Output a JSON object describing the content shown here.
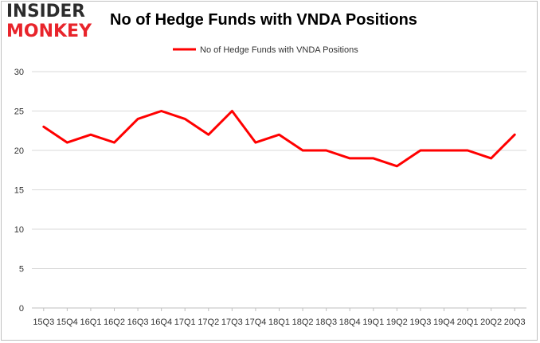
{
  "logo": {
    "line1": "INSIDER",
    "line2": "MONKEY"
  },
  "title": "No of Hedge Funds with VNDA Positions",
  "colors": {
    "series": "#ff0000",
    "grid": "#d9d9d9",
    "axis": "#bfbfbf",
    "logo_red": "#e8242b"
  },
  "chart_data": {
    "type": "line",
    "title": "No of Hedge Funds with VNDA Positions",
    "xlabel": "",
    "ylabel": "",
    "ylim": [
      0,
      30
    ],
    "yticks": [
      0,
      5,
      10,
      15,
      20,
      25,
      30
    ],
    "grid": true,
    "legend_position": "top-center",
    "categories": [
      "15Q3",
      "15Q4",
      "16Q1",
      "16Q2",
      "16Q3",
      "16Q4",
      "17Q1",
      "17Q2",
      "17Q3",
      "17Q4",
      "18Q1",
      "18Q2",
      "18Q3",
      "18Q4",
      "19Q1",
      "19Q2",
      "19Q3",
      "19Q4",
      "20Q1",
      "20Q2",
      "20Q3"
    ],
    "series": [
      {
        "name": "No of Hedge Funds with VNDA Positions",
        "values": [
          23,
          21,
          22,
          21,
          24,
          25,
          24,
          22,
          25,
          21,
          22,
          20,
          20,
          19,
          19,
          18,
          20,
          20,
          20,
          19,
          22
        ]
      }
    ]
  }
}
